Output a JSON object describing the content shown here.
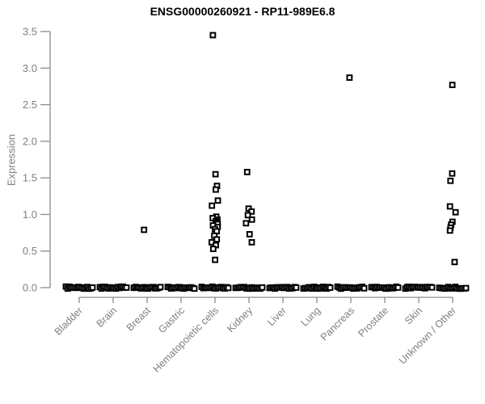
{
  "colors": {
    "background": "#ffffff",
    "title_text": "#000000",
    "axis_line": "#8a8a8a",
    "tick_text": "#7f7f7f",
    "marker": "#000000",
    "marker_fill": "#ffffff"
  },
  "chart_data": {
    "type": "scatter",
    "title": "ENSG00000260921 - RP11-989E6.8",
    "xlabel": "",
    "ylabel": "Expression",
    "ylim": [
      0.0,
      3.5
    ],
    "yticks": [
      "0.0",
      "0.5",
      "1.0",
      "1.5",
      "2.0",
      "2.5",
      "3.0",
      "3.5"
    ],
    "grid": false,
    "legend": "none",
    "marker": "open-square",
    "categories": [
      "Bladder",
      "Brain",
      "Breast",
      "Gastric",
      "Hematopoietic cells",
      "Kidney",
      "Liver",
      "Lung",
      "Pancreas",
      "Prostate",
      "Skin",
      "Unknown / Other"
    ],
    "series": [
      {
        "category": "Bladder",
        "nonzero_values": [],
        "has_zero_cluster": true
      },
      {
        "category": "Brain",
        "nonzero_values": [],
        "has_zero_cluster": true
      },
      {
        "category": "Breast",
        "nonzero_values": [
          0.79
        ],
        "has_zero_cluster": true
      },
      {
        "category": "Gastric",
        "nonzero_values": [],
        "has_zero_cluster": true
      },
      {
        "category": "Hematopoietic cells",
        "nonzero_values": [
          3.45,
          1.55,
          1.39,
          1.34,
          1.19,
          1.12,
          0.97,
          0.95,
          0.93,
          0.91,
          0.89,
          0.87,
          0.85,
          0.83,
          0.8,
          0.77,
          0.71,
          0.66,
          0.62,
          0.58,
          0.53,
          0.38
        ],
        "has_zero_cluster": true
      },
      {
        "category": "Kidney",
        "nonzero_values": [
          1.58,
          1.08,
          1.04,
          0.99,
          0.93,
          0.88,
          0.73,
          0.62
        ],
        "has_zero_cluster": true
      },
      {
        "category": "Liver",
        "nonzero_values": [],
        "has_zero_cluster": true
      },
      {
        "category": "Lung",
        "nonzero_values": [],
        "has_zero_cluster": true
      },
      {
        "category": "Pancreas",
        "nonzero_values": [
          2.87
        ],
        "has_zero_cluster": true
      },
      {
        "category": "Prostate",
        "nonzero_values": [],
        "has_zero_cluster": true
      },
      {
        "category": "Skin",
        "nonzero_values": [],
        "has_zero_cluster": true
      },
      {
        "category": "Unknown / Other",
        "nonzero_values": [
          2.77,
          1.56,
          1.46,
          1.11,
          1.03,
          0.9,
          0.86,
          0.82,
          0.78,
          0.35
        ],
        "has_zero_cluster": true
      }
    ]
  }
}
